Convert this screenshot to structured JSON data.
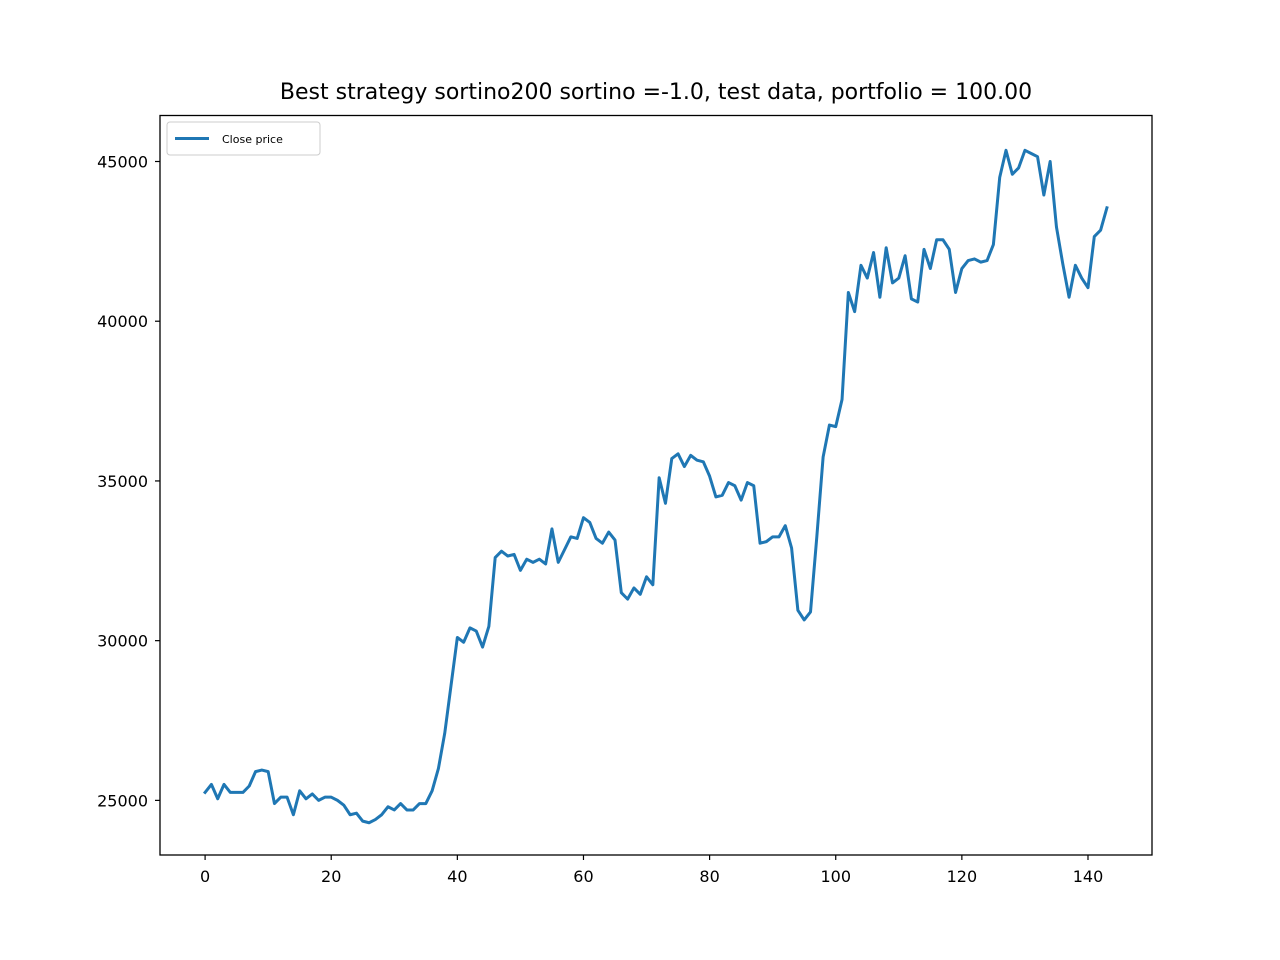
{
  "chart_data": {
    "type": "line",
    "title": "Best strategy sortino200 sortino =-1.0, test data, portfolio = 100.00",
    "xlabel": "",
    "ylabel": "",
    "xlim": [
      -7.15,
      150.15
    ],
    "ylim": [
      23290,
      46440
    ],
    "xticks": [
      0,
      20,
      40,
      60,
      80,
      100,
      120,
      140
    ],
    "yticks": [
      25000,
      30000,
      35000,
      40000,
      45000
    ],
    "grid": false,
    "legend_position": "upper-left",
    "colors": {
      "series": "#1f77b4"
    },
    "series": [
      {
        "name": "Close price",
        "values": [
          25250,
          25500,
          25050,
          25500,
          25250,
          25250,
          25250,
          25450,
          25900,
          25950,
          25900,
          24900,
          25100,
          25100,
          24550,
          25300,
          25050,
          25200,
          25000,
          25100,
          25100,
          25000,
          24850,
          24550,
          24600,
          24350,
          24300,
          24400,
          24550,
          24800,
          24700,
          24900,
          24700,
          24700,
          24900,
          24900,
          25300,
          26000,
          27100,
          28600,
          30100,
          29950,
          30400,
          30300,
          29800,
          30450,
          32600,
          32800,
          32650,
          32700,
          32200,
          32550,
          32450,
          32550,
          32400,
          33500,
          32450,
          32850,
          33250,
          33200,
          33850,
          33700,
          33200,
          33050,
          33400,
          33150,
          31500,
          31300,
          31650,
          31450,
          32000,
          31750,
          35100,
          34300,
          35700,
          35850,
          35450,
          35800,
          35650,
          35600,
          35150,
          34500,
          34550,
          34950,
          34850,
          34400,
          34950,
          34850,
          33050,
          33100,
          33250,
          33250,
          33600,
          32900,
          30950,
          30650,
          30900,
          33250,
          35750,
          36750,
          36700,
          37550,
          40900,
          40300,
          41750,
          41350,
          42150,
          40750,
          42300,
          41200,
          41350,
          42050,
          40700,
          40600,
          42250,
          41650,
          42550,
          42550,
          42250,
          40900,
          41650,
          41900,
          41950,
          41850,
          41900,
          42400,
          44500,
          45350,
          44600,
          44800,
          45350,
          45250,
          45150,
          43950,
          45000,
          42950,
          41800,
          40750,
          41750,
          41350,
          41050,
          42650,
          42850,
          43550
        ]
      }
    ]
  }
}
